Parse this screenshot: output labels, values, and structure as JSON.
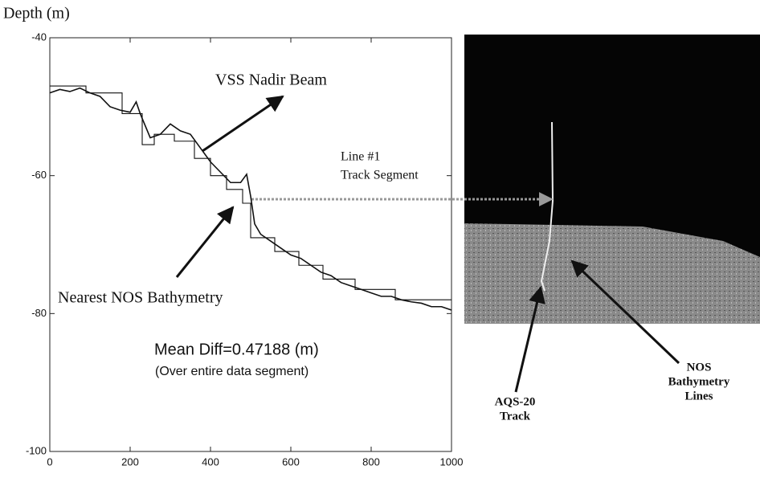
{
  "chart_data": {
    "type": "line",
    "ylabel": "Depth (m)",
    "xlim": [
      0,
      1000
    ],
    "xticks": [
      0,
      200,
      400,
      600,
      800,
      1000
    ],
    "ylim": [
      -100,
      -40
    ],
    "yticks": [
      -100,
      -80,
      -60,
      -40
    ],
    "series": [
      {
        "name": "VSS Nadir Beam",
        "color": "#111111",
        "x": [
          0,
          25,
          50,
          75,
          100,
          125,
          150,
          175,
          200,
          215,
          225,
          250,
          275,
          300,
          325,
          350,
          375,
          400,
          425,
          450,
          475,
          490,
          500,
          510,
          525,
          550,
          575,
          600,
          625,
          650,
          675,
          700,
          725,
          750,
          775,
          800,
          825,
          850,
          875,
          900,
          925,
          950,
          975,
          1000
        ],
        "values": [
          -48,
          -47.5,
          -47.8,
          -47.3,
          -48,
          -48.5,
          -50,
          -50.5,
          -50.8,
          -49.3,
          -51,
          -54.5,
          -54,
          -52.5,
          -53.5,
          -54,
          -56,
          -58,
          -59.5,
          -61,
          -61,
          -59.8,
          -63,
          -67,
          -68.5,
          -69.5,
          -70.5,
          -71.5,
          -72,
          -73,
          -74,
          -74.5,
          -75.5,
          -76,
          -76.5,
          -77,
          -77.5,
          -77.5,
          -78,
          -78.3,
          -78.5,
          -79,
          -79,
          -79.5
        ]
      },
      {
        "name": "Nearest NOS Bathymetry",
        "color": "#111111",
        "x": [
          0,
          90,
          90,
          180,
          180,
          230,
          230,
          260,
          260,
          310,
          310,
          360,
          360,
          400,
          400,
          440,
          440,
          480,
          480,
          500,
          500,
          560,
          560,
          620,
          620,
          680,
          680,
          760,
          760,
          860,
          860,
          1000
        ],
        "values": [
          -47,
          -47,
          -48,
          -48,
          -51,
          -51,
          -55.5,
          -55.5,
          -54,
          -54,
          -55,
          -55,
          -57.5,
          -57.5,
          -60,
          -60,
          -62,
          -62,
          -64,
          -64,
          -69,
          -69,
          -71,
          -71,
          -73,
          -73,
          -75,
          -75,
          -76.5,
          -76.5,
          -78,
          -78
        ]
      }
    ],
    "annotations": [
      "Mean Diff=0.47188 (m)",
      "(Over entire data segment)",
      "Line #1",
      "Track Segment",
      "NOS",
      "Bathymetry",
      "Lines",
      "AQS-20",
      "Track"
    ]
  }
}
